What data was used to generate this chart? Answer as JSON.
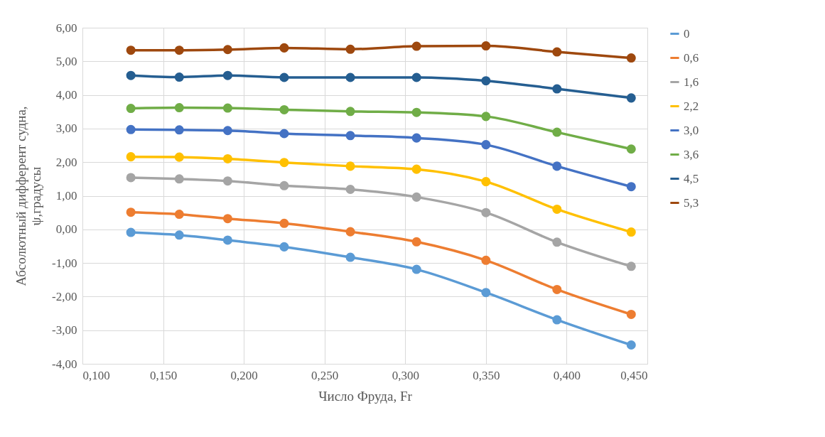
{
  "chart_data": {
    "type": "line",
    "xlabel": "Число Фруда, Fr",
    "ylabel": "Абсолютный дифферент судна, ψ,градусы",
    "x": [
      0.13,
      0.16,
      0.19,
      0.225,
      0.266,
      0.307,
      0.35,
      0.394,
      0.44
    ],
    "series": [
      {
        "name": "0",
        "color": "#5b9bd5",
        "values": [
          -0.09,
          -0.17,
          -0.32,
          -0.52,
          -0.83,
          -1.19,
          -1.88,
          -2.69,
          -3.44
        ]
      },
      {
        "name": "0,6",
        "color": "#ed7d31",
        "values": [
          0.51,
          0.45,
          0.32,
          0.18,
          -0.07,
          -0.37,
          -0.92,
          -1.79,
          -2.53
        ]
      },
      {
        "name": "1,6",
        "color": "#a5a5a5",
        "values": [
          1.54,
          1.5,
          1.44,
          1.3,
          1.19,
          0.96,
          0.5,
          -0.38,
          -1.1
        ]
      },
      {
        "name": "2,2",
        "color": "#ffc000",
        "values": [
          2.16,
          2.15,
          2.1,
          1.99,
          1.88,
          1.79,
          1.42,
          0.6,
          -0.08
        ]
      },
      {
        "name": "3,0",
        "color": "#4472c4",
        "values": [
          2.97,
          2.96,
          2.94,
          2.85,
          2.79,
          2.72,
          2.52,
          1.88,
          1.27
        ]
      },
      {
        "name": "3,6",
        "color": "#70ad47",
        "values": [
          3.6,
          3.62,
          3.61,
          3.56,
          3.51,
          3.48,
          3.36,
          2.89,
          2.39
        ]
      },
      {
        "name": "4,5",
        "color": "#255e91",
        "values": [
          4.58,
          4.53,
          4.58,
          4.52,
          4.52,
          4.52,
          4.42,
          4.18,
          3.91
        ]
      },
      {
        "name": "5,3",
        "color": "#9e480e",
        "values": [
          5.33,
          5.33,
          5.35,
          5.4,
          5.36,
          5.45,
          5.46,
          5.28,
          5.1
        ]
      }
    ],
    "xlim": [
      0.1,
      0.45
    ],
    "xticks": [
      {
        "value": 0.1,
        "label": "0,100"
      },
      {
        "value": 0.15,
        "label": "0,150"
      },
      {
        "value": 0.2,
        "label": "0,200"
      },
      {
        "value": 0.25,
        "label": "0,250"
      },
      {
        "value": 0.3,
        "label": "0,300"
      },
      {
        "value": 0.35,
        "label": "0,350"
      },
      {
        "value": 0.4,
        "label": "0,400"
      },
      {
        "value": 0.45,
        "label": "0,450"
      }
    ],
    "ylim": [
      -4,
      6
    ],
    "yticks": [
      {
        "value": -4,
        "label": "-4,00"
      },
      {
        "value": -3,
        "label": "-3,00"
      },
      {
        "value": -2,
        "label": "-2,00"
      },
      {
        "value": -1,
        "label": "-1,00"
      },
      {
        "value": 0,
        "label": "0,00"
      },
      {
        "value": 1,
        "label": "1,00"
      },
      {
        "value": 2,
        "label": "2,00"
      },
      {
        "value": 3,
        "label": "3,00"
      },
      {
        "value": 4,
        "label": "4,00"
      },
      {
        "value": 5,
        "label": "5,00"
      },
      {
        "value": 6,
        "label": "6,00"
      }
    ],
    "grid": true,
    "legend": "right",
    "marker": "circle",
    "line_style": "solid"
  }
}
